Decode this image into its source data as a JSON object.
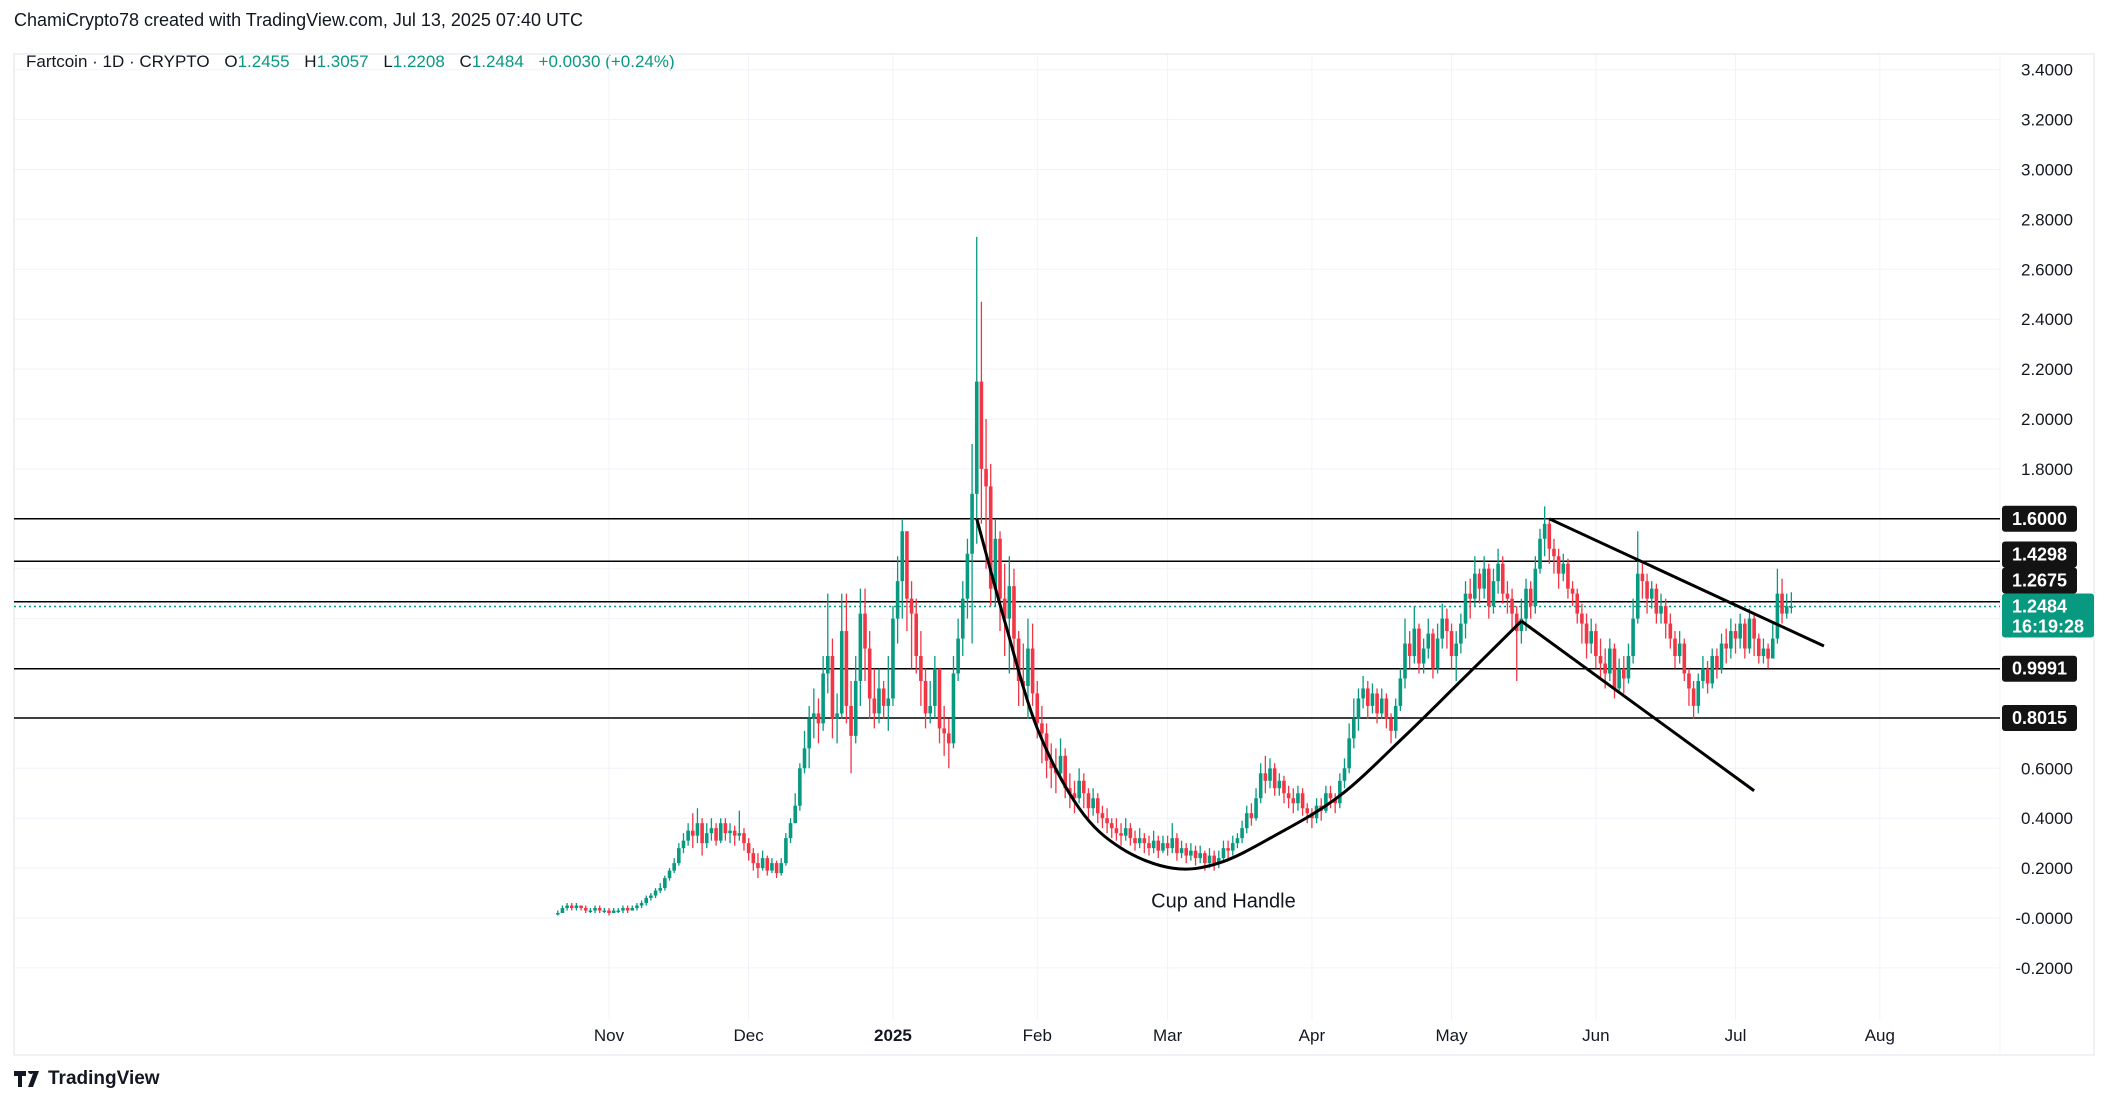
{
  "caption": "ChamiCrypto78 created with TradingView.com, Jul 13, 2025 07:40 UTC",
  "legend": {
    "symbol": "Fartcoin · 1D · CRYPTO",
    "o_label": "O",
    "o": "1.2455",
    "h_label": "H",
    "h": "1.3057",
    "l_label": "L",
    "l": "1.2208",
    "c_label": "C",
    "c": "1.2484",
    "change": "+0.0030 (+0.24%)"
  },
  "footer": {
    "logo": "TradingView"
  },
  "colors": {
    "up": "#089981",
    "down": "#f23645",
    "line": "#000000",
    "grid": "#f0f3fa",
    "label_bg": "#131313",
    "last_bg": "#089981"
  },
  "chart_data": {
    "type": "candlestick",
    "title": "",
    "ylim": [
      -0.3,
      3.5
    ],
    "grid": true,
    "y_ticks": [
      "3.4000",
      "3.2000",
      "3.0000",
      "2.8000",
      "2.6000",
      "2.4000",
      "2.2000",
      "2.0000",
      "1.8000",
      "0.6000",
      "0.4000",
      "0.2000",
      "-0.0000",
      "-0.2000"
    ],
    "x_ticks": [
      {
        "label": "Nov",
        "date": "2024-11-01"
      },
      {
        "label": "Dec",
        "date": "2024-12-01"
      },
      {
        "label": "2025",
        "date": "2025-01-01"
      },
      {
        "label": "Feb",
        "date": "2025-02-01"
      },
      {
        "label": "Mar",
        "date": "2025-03-01"
      },
      {
        "label": "Apr",
        "date": "2025-04-01"
      },
      {
        "label": "May",
        "date": "2025-05-01"
      },
      {
        "label": "Jun",
        "date": "2025-06-01"
      },
      {
        "label": "Jul",
        "date": "2025-07-01"
      },
      {
        "label": "Aug",
        "date": "2025-08-01"
      }
    ],
    "start_date": "2024-10-21",
    "close": [
      0.02,
      0.04,
      0.05,
      0.04,
      0.05,
      0.04,
      0.03,
      0.03,
      0.04,
      0.03,
      0.03,
      0.02,
      0.03,
      0.03,
      0.04,
      0.03,
      0.04,
      0.05,
      0.06,
      0.08,
      0.09,
      0.11,
      0.12,
      0.16,
      0.19,
      0.22,
      0.28,
      0.31,
      0.35,
      0.33,
      0.38,
      0.3,
      0.34,
      0.36,
      0.31,
      0.38,
      0.34,
      0.35,
      0.33,
      0.34,
      0.3,
      0.26,
      0.22,
      0.2,
      0.24,
      0.19,
      0.22,
      0.18,
      0.22,
      0.32,
      0.38,
      0.45,
      0.6,
      0.68,
      0.8,
      0.82,
      0.78,
      0.98,
      1.05,
      0.8,
      0.82,
      1.15,
      0.85,
      0.73,
      0.95,
      1.22,
      1.08,
      0.88,
      0.82,
      0.92,
      0.85,
      0.88,
      1.2,
      1.35,
      1.55,
      1.28,
      1.22,
      1.05,
      0.95,
      0.82,
      0.85,
      1.0,
      0.76,
      0.74,
      0.7,
      0.98,
      1.12,
      1.28,
      1.46,
      1.7,
      2.15,
      1.8,
      1.73,
      1.32,
      1.52,
      1.28,
      1.2,
      1.33,
      1.12,
      0.95,
      0.93,
      1.08,
      0.9,
      0.78,
      0.74,
      0.63,
      0.6,
      0.58,
      0.65,
      0.52,
      0.5,
      0.48,
      0.55,
      0.5,
      0.44,
      0.48,
      0.42,
      0.4,
      0.38,
      0.36,
      0.34,
      0.33,
      0.36,
      0.32,
      0.3,
      0.32,
      0.3,
      0.28,
      0.31,
      0.27,
      0.3,
      0.28,
      0.32,
      0.26,
      0.28,
      0.25,
      0.27,
      0.24,
      0.26,
      0.22,
      0.25,
      0.22,
      0.24,
      0.28,
      0.27,
      0.3,
      0.32,
      0.36,
      0.42,
      0.4,
      0.48,
      0.58,
      0.55,
      0.6,
      0.52,
      0.55,
      0.5,
      0.48,
      0.46,
      0.5,
      0.44,
      0.42,
      0.4,
      0.45,
      0.43,
      0.5,
      0.48,
      0.46,
      0.55,
      0.6,
      0.72,
      0.8,
      0.88,
      0.92,
      0.85,
      0.9,
      0.82,
      0.88,
      0.8,
      0.75,
      0.85,
      0.96,
      1.1,
      1.05,
      1.16,
      1.02,
      1.08,
      1.14,
      1.0,
      1.12,
      1.2,
      1.15,
      1.05,
      1.1,
      1.18,
      1.3,
      1.28,
      1.38,
      1.32,
      1.4,
      1.25,
      1.35,
      1.42,
      1.3,
      1.28,
      1.22,
      1.15,
      1.2,
      1.32,
      1.25,
      1.4,
      1.52,
      1.58,
      1.48,
      1.45,
      1.38,
      1.42,
      1.32,
      1.3,
      1.22,
      1.18,
      1.1,
      1.15,
      1.05,
      1.02,
      0.98,
      1.08,
      0.92,
      1.0,
      0.96,
      1.05,
      1.2,
      1.38,
      1.35,
      1.28,
      1.32,
      1.22,
      1.25,
      1.18,
      1.12,
      1.05,
      1.1,
      0.98,
      0.92,
      0.85,
      0.95,
      1.0,
      0.94,
      1.05,
      1.0,
      1.1,
      1.08,
      1.15,
      1.12,
      1.18,
      1.08,
      1.2,
      1.12,
      1.05,
      1.08,
      1.04,
      1.12,
      1.3,
      1.22,
      1.25,
      1.2484
    ],
    "high": [
      0.03,
      0.05,
      0.06,
      0.06,
      0.06,
      0.05,
      0.05,
      0.04,
      0.05,
      0.05,
      0.04,
      0.04,
      0.04,
      0.04,
      0.05,
      0.05,
      0.05,
      0.06,
      0.07,
      0.09,
      0.1,
      0.12,
      0.14,
      0.17,
      0.2,
      0.24,
      0.3,
      0.34,
      0.38,
      0.42,
      0.44,
      0.4,
      0.38,
      0.4,
      0.38,
      0.4,
      0.4,
      0.38,
      0.37,
      0.43,
      0.36,
      0.32,
      0.28,
      0.26,
      0.27,
      0.25,
      0.24,
      0.23,
      0.24,
      0.34,
      0.4,
      0.5,
      0.62,
      0.75,
      0.85,
      0.92,
      0.88,
      1.05,
      1.3,
      1.12,
      0.9,
      1.3,
      1.3,
      0.95,
      1.05,
      1.32,
      1.32,
      1.15,
      1.0,
      1.0,
      0.95,
      1.05,
      1.25,
      1.45,
      1.6,
      1.55,
      1.35,
      1.28,
      1.15,
      1.0,
      0.95,
      1.05,
      1.0,
      0.85,
      0.8,
      1.05,
      1.2,
      1.35,
      1.52,
      1.9,
      2.73,
      2.47,
      2.0,
      1.82,
      1.6,
      1.55,
      1.42,
      1.45,
      1.4,
      1.15,
      1.1,
      1.2,
      1.18,
      0.95,
      0.85,
      0.78,
      0.7,
      0.68,
      0.72,
      0.68,
      0.58,
      0.55,
      0.6,
      0.58,
      0.52,
      0.52,
      0.5,
      0.45,
      0.44,
      0.4,
      0.4,
      0.38,
      0.4,
      0.38,
      0.35,
      0.36,
      0.34,
      0.33,
      0.35,
      0.33,
      0.33,
      0.33,
      0.38,
      0.34,
      0.31,
      0.3,
      0.3,
      0.29,
      0.29,
      0.27,
      0.28,
      0.27,
      0.27,
      0.31,
      0.31,
      0.33,
      0.34,
      0.39,
      0.45,
      0.46,
      0.52,
      0.62,
      0.65,
      0.64,
      0.62,
      0.58,
      0.57,
      0.53,
      0.52,
      0.53,
      0.52,
      0.46,
      0.44,
      0.48,
      0.48,
      0.53,
      0.53,
      0.5,
      0.58,
      0.64,
      0.78,
      0.88,
      0.92,
      0.97,
      0.95,
      0.94,
      0.92,
      0.92,
      0.9,
      0.82,
      0.88,
      1.0,
      1.2,
      1.15,
      1.25,
      1.18,
      1.12,
      1.2,
      1.16,
      1.18,
      1.26,
      1.24,
      1.18,
      1.15,
      1.22,
      1.35,
      1.36,
      1.45,
      1.4,
      1.45,
      1.42,
      1.4,
      1.48,
      1.45,
      1.35,
      1.32,
      1.25,
      1.28,
      1.36,
      1.35,
      1.45,
      1.56,
      1.65,
      1.6,
      1.52,
      1.48,
      1.46,
      1.44,
      1.35,
      1.32,
      1.26,
      1.22,
      1.2,
      1.18,
      1.12,
      1.08,
      1.12,
      1.1,
      1.04,
      1.05,
      1.1,
      1.28,
      1.55,
      1.42,
      1.38,
      1.35,
      1.34,
      1.3,
      1.28,
      1.22,
      1.15,
      1.15,
      1.12,
      1.0,
      0.95,
      0.98,
      1.05,
      1.03,
      1.08,
      1.08,
      1.14,
      1.16,
      1.2,
      1.18,
      1.22,
      1.2,
      1.24,
      1.22,
      1.14,
      1.12,
      1.1,
      1.18,
      1.4,
      1.36,
      1.3,
      1.3057
    ],
    "low": [
      0.01,
      0.02,
      0.03,
      0.03,
      0.03,
      0.03,
      0.02,
      0.02,
      0.02,
      0.02,
      0.02,
      0.01,
      0.02,
      0.02,
      0.02,
      0.02,
      0.03,
      0.03,
      0.04,
      0.05,
      0.07,
      0.08,
      0.1,
      0.11,
      0.15,
      0.18,
      0.21,
      0.26,
      0.29,
      0.28,
      0.3,
      0.25,
      0.28,
      0.31,
      0.29,
      0.3,
      0.31,
      0.3,
      0.29,
      0.31,
      0.27,
      0.23,
      0.19,
      0.16,
      0.19,
      0.17,
      0.18,
      0.16,
      0.17,
      0.21,
      0.3,
      0.38,
      0.43,
      0.58,
      0.6,
      0.72,
      0.7,
      0.75,
      0.9,
      0.72,
      0.7,
      0.8,
      0.78,
      0.58,
      0.7,
      0.85,
      0.95,
      0.8,
      0.76,
      0.78,
      0.8,
      0.75,
      0.85,
      1.1,
      1.2,
      1.15,
      1.0,
      0.98,
      0.85,
      0.76,
      0.78,
      0.8,
      0.7,
      0.65,
      0.6,
      0.68,
      0.95,
      1.05,
      1.2,
      1.1,
      1.5,
      1.58,
      1.4,
      1.25,
      1.25,
      1.15,
      1.05,
      0.98,
      1.0,
      0.85,
      0.85,
      0.8,
      0.85,
      0.72,
      0.62,
      0.56,
      0.52,
      0.5,
      0.55,
      0.48,
      0.44,
      0.42,
      0.46,
      0.44,
      0.4,
      0.41,
      0.38,
      0.36,
      0.34,
      0.32,
      0.31,
      0.29,
      0.31,
      0.29,
      0.27,
      0.28,
      0.26,
      0.25,
      0.26,
      0.24,
      0.26,
      0.25,
      0.26,
      0.23,
      0.24,
      0.22,
      0.23,
      0.21,
      0.22,
      0.19,
      0.2,
      0.19,
      0.2,
      0.22,
      0.24,
      0.25,
      0.28,
      0.3,
      0.34,
      0.37,
      0.39,
      0.46,
      0.5,
      0.52,
      0.49,
      0.49,
      0.46,
      0.44,
      0.42,
      0.43,
      0.41,
      0.38,
      0.36,
      0.38,
      0.39,
      0.42,
      0.44,
      0.42,
      0.44,
      0.52,
      0.58,
      0.68,
      0.75,
      0.84,
      0.8,
      0.82,
      0.78,
      0.8,
      0.76,
      0.7,
      0.72,
      0.83,
      0.92,
      1.0,
      1.02,
      0.98,
      0.98,
      1.04,
      0.96,
      0.98,
      1.08,
      1.08,
      1.0,
      0.95,
      1.06,
      1.12,
      1.2,
      1.25,
      1.26,
      1.28,
      1.2,
      1.22,
      1.3,
      1.26,
      1.22,
      1.15,
      0.95,
      1.1,
      1.15,
      1.2,
      1.22,
      1.38,
      1.45,
      1.42,
      1.38,
      1.32,
      1.35,
      1.28,
      1.25,
      1.18,
      1.1,
      1.04,
      1.06,
      1.0,
      0.96,
      0.92,
      0.95,
      0.88,
      0.9,
      0.9,
      0.94,
      1.02,
      1.18,
      1.28,
      1.22,
      1.24,
      1.18,
      1.18,
      1.12,
      1.08,
      1.0,
      1.02,
      0.95,
      0.85,
      0.8,
      0.82,
      0.92,
      0.9,
      0.92,
      0.96,
      0.98,
      1.02,
      1.04,
      1.06,
      1.08,
      1.04,
      1.06,
      1.05,
      1.02,
      1.02,
      1.0,
      1.04,
      1.1,
      1.18,
      1.2,
      1.2208
    ],
    "last_open": 1.2455,
    "horizontal_levels": [
      {
        "price": 1.6,
        "label": "1.6000"
      },
      {
        "price": 1.4298,
        "label": "1.4298"
      },
      {
        "price": 1.2675,
        "label": "1.2675"
      },
      {
        "price": 0.9991,
        "label": "0.9991"
      },
      {
        "price": 0.8015,
        "label": "0.8015"
      }
    ],
    "last_price": {
      "price": 1.2484,
      "label": "1.2484",
      "countdown": "16:19:28"
    },
    "cup_curve": [
      {
        "date": "2025-01-19",
        "price": 1.6
      },
      {
        "date": "2025-01-25",
        "price": 1.19
      },
      {
        "date": "2025-02-01",
        "price": 0.76
      },
      {
        "date": "2025-02-10",
        "price": 0.44
      },
      {
        "date": "2025-02-19",
        "price": 0.28
      },
      {
        "date": "2025-03-02",
        "price": 0.2
      },
      {
        "date": "2025-03-12",
        "price": 0.22
      },
      {
        "date": "2025-03-24",
        "price": 0.33
      },
      {
        "date": "2025-04-07",
        "price": 0.49
      },
      {
        "date": "2025-04-21",
        "price": 0.73
      },
      {
        "date": "2025-05-03",
        "price": 0.95
      },
      {
        "date": "2025-05-16",
        "price": 1.19
      }
    ],
    "handle_lines": [
      {
        "from": {
          "date": "2025-05-22",
          "price": 1.6
        },
        "to": {
          "date": "2025-07-20",
          "price": 1.09
        }
      },
      {
        "from": {
          "date": "2025-05-16",
          "price": 1.19
        },
        "to": {
          "date": "2025-07-05",
          "price": 0.51
        }
      }
    ],
    "annotation": {
      "text": "Cup and Handle",
      "date": "2025-03-13",
      "price": 0.07
    }
  }
}
